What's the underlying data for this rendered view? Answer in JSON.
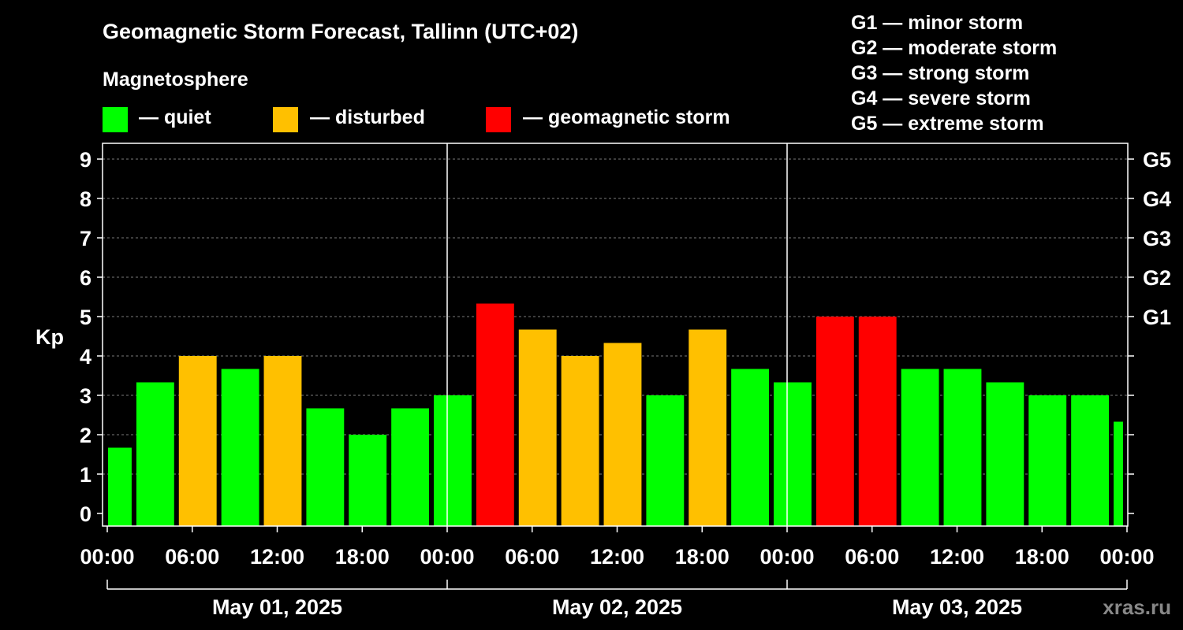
{
  "chart_data": {
    "type": "bar",
    "title": "Geomagnetic Storm Forecast, Tallinn (UTC+02)",
    "legend_title": "Magnetosphere",
    "legend": [
      {
        "label": "— quiet",
        "color": "#00ff00"
      },
      {
        "label": "— disturbed",
        "color": "#ffc000"
      },
      {
        "label": "— geomagnetic storm",
        "color": "#ff0000"
      }
    ],
    "storm_levels": [
      "G1 — minor storm",
      "G2 — moderate storm",
      "G3 — strong storm",
      "G4 — severe storm",
      "G5 — extreme storm"
    ],
    "ylabel": "Kp",
    "ylim": [
      0,
      9
    ],
    "y_ticks": [
      "0",
      "1",
      "2",
      "3",
      "4",
      "5",
      "6",
      "7",
      "8",
      "9"
    ],
    "right_ticks": [
      {
        "kp": 5,
        "label": "G1"
      },
      {
        "kp": 6,
        "label": "G2"
      },
      {
        "kp": 7,
        "label": "G3"
      },
      {
        "kp": 8,
        "label": "G4"
      },
      {
        "kp": 9,
        "label": "G5"
      }
    ],
    "x_range_hours": [
      0,
      72
    ],
    "x_ticks": [
      {
        "hour": 0,
        "label": "00:00"
      },
      {
        "hour": 6,
        "label": "06:00"
      },
      {
        "hour": 12,
        "label": "12:00"
      },
      {
        "hour": 18,
        "label": "18:00"
      },
      {
        "hour": 24,
        "label": "00:00"
      },
      {
        "hour": 30,
        "label": "06:00"
      },
      {
        "hour": 36,
        "label": "12:00"
      },
      {
        "hour": 42,
        "label": "18:00"
      },
      {
        "hour": 48,
        "label": "00:00"
      },
      {
        "hour": 54,
        "label": "06:00"
      },
      {
        "hour": 60,
        "label": "12:00"
      },
      {
        "hour": 66,
        "label": "18:00"
      },
      {
        "hour": 72,
        "label": "00:00"
      }
    ],
    "days": [
      {
        "label": "May 01, 2025",
        "start_hour": 0,
        "end_hour": 24
      },
      {
        "label": "May 02, 2025",
        "start_hour": 24,
        "end_hour": 48
      },
      {
        "label": "May 03, 2025",
        "start_hour": 48,
        "end_hour": 72
      }
    ],
    "bars": [
      {
        "start_hour": 0,
        "end_hour": 2,
        "kp": 1.67,
        "level": "quiet"
      },
      {
        "start_hour": 2,
        "end_hour": 5,
        "kp": 3.33,
        "level": "quiet"
      },
      {
        "start_hour": 5,
        "end_hour": 8,
        "kp": 4.0,
        "level": "disturbed"
      },
      {
        "start_hour": 8,
        "end_hour": 11,
        "kp": 3.67,
        "level": "quiet"
      },
      {
        "start_hour": 11,
        "end_hour": 14,
        "kp": 4.0,
        "level": "disturbed"
      },
      {
        "start_hour": 14,
        "end_hour": 17,
        "kp": 2.67,
        "level": "quiet"
      },
      {
        "start_hour": 17,
        "end_hour": 20,
        "kp": 2.0,
        "level": "quiet"
      },
      {
        "start_hour": 20,
        "end_hour": 23,
        "kp": 2.67,
        "level": "quiet"
      },
      {
        "start_hour": 23,
        "end_hour": 26,
        "kp": 3.0,
        "level": "quiet"
      },
      {
        "start_hour": 26,
        "end_hour": 29,
        "kp": 5.33,
        "level": "storm"
      },
      {
        "start_hour": 29,
        "end_hour": 32,
        "kp": 4.67,
        "level": "disturbed"
      },
      {
        "start_hour": 32,
        "end_hour": 35,
        "kp": 4.0,
        "level": "disturbed"
      },
      {
        "start_hour": 35,
        "end_hour": 38,
        "kp": 4.33,
        "level": "disturbed"
      },
      {
        "start_hour": 38,
        "end_hour": 41,
        "kp": 3.0,
        "level": "quiet"
      },
      {
        "start_hour": 41,
        "end_hour": 44,
        "kp": 4.67,
        "level": "disturbed"
      },
      {
        "start_hour": 44,
        "end_hour": 47,
        "kp": 3.67,
        "level": "quiet"
      },
      {
        "start_hour": 47,
        "end_hour": 50,
        "kp": 3.33,
        "level": "quiet"
      },
      {
        "start_hour": 50,
        "end_hour": 53,
        "kp": 5.0,
        "level": "storm"
      },
      {
        "start_hour": 53,
        "end_hour": 56,
        "kp": 5.0,
        "level": "storm"
      },
      {
        "start_hour": 56,
        "end_hour": 59,
        "kp": 3.67,
        "level": "quiet"
      },
      {
        "start_hour": 59,
        "end_hour": 62,
        "kp": 3.67,
        "level": "quiet"
      },
      {
        "start_hour": 62,
        "end_hour": 65,
        "kp": 3.33,
        "level": "quiet"
      },
      {
        "start_hour": 65,
        "end_hour": 68,
        "kp": 3.0,
        "level": "quiet"
      },
      {
        "start_hour": 68,
        "end_hour": 71,
        "kp": 3.0,
        "level": "quiet"
      },
      {
        "start_hour": 71,
        "end_hour": 72,
        "kp": 2.33,
        "level": "quiet"
      }
    ],
    "level_colors": {
      "quiet": "#00ff00",
      "disturbed": "#ffc000",
      "storm": "#ff0000"
    },
    "watermark": "xras.ru"
  }
}
